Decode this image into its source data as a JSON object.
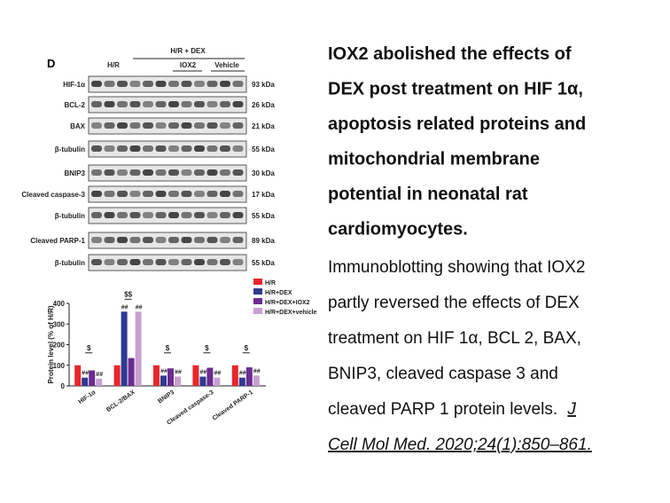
{
  "figure": {
    "panel": "D",
    "group_header": "H/R + DEX",
    "lanes": [
      "H/R",
      "IOX2",
      "Vehicle"
    ],
    "rows": [
      {
        "label": "HIF-1α",
        "size": "93 kDa"
      },
      {
        "label": "BCL-2",
        "size": "26 kDa"
      },
      {
        "label": "BAX",
        "size": "21 kDa"
      },
      {
        "label": "β-tubulin",
        "size": "55 kDa"
      },
      {
        "label": "BNIP3",
        "size": "30 kDa"
      },
      {
        "label": "Cleaved caspase-3",
        "size": "17 kDa"
      },
      {
        "label": "β-tubulin",
        "size": "55 kDa"
      },
      {
        "label": "Cleaved PARP-1",
        "size": "89 kDa"
      },
      {
        "label": "β-tubulin",
        "size": "55 kDa"
      }
    ]
  },
  "chart_data": {
    "type": "bar",
    "ylabel": "Protein level (% of H/R)",
    "categories": [
      "HIF-1α",
      "BCL-2/BAX",
      "BNIP3",
      "Cleaved caspase-3",
      "Cleaved PARP-1"
    ],
    "series": [
      {
        "name": "H/R",
        "color": "#e8262a",
        "values": [
          100,
          100,
          100,
          100,
          100
        ]
      },
      {
        "name": "H/R+DEX",
        "color": "#2e3a91",
        "values": [
          40,
          360,
          50,
          45,
          40
        ],
        "annotations": [
          "##",
          "##",
          "##",
          "##",
          "##"
        ]
      },
      {
        "name": "H/R+DEX+IOX2",
        "color": "#6a2c91",
        "values": [
          75,
          135,
          85,
          88,
          90
        ]
      },
      {
        "name": "H/R+DEX+vehicle",
        "color": "#c79fd0",
        "values": [
          35,
          360,
          45,
          40,
          50
        ],
        "annotations": [
          "##",
          "##",
          "##",
          "##",
          "##"
        ]
      }
    ],
    "brackets": [
      "$",
      "$$",
      "$",
      "$",
      "$"
    ],
    "ylim": [
      0,
      400
    ],
    "yticks": [
      0,
      100,
      200,
      300,
      400
    ]
  },
  "caption": {
    "title_lines": [
      "IOX2 abolished the effects of",
      "DEX post treatment on HIF 1α,",
      "apoptosis related proteins and",
      "mitochondrial membrane",
      "potential in neonatal rat",
      "cardiomyocytes."
    ],
    "body_lines": [
      "Immunoblotting showing that IOX2",
      "partly reversed the effects of DEX",
      "treatment on HIF 1α, BCL 2, BAX,",
      "BNIP3, cleaved caspase 3 and",
      "cleaved PARP 1 protein levels. "
    ],
    "citation": [
      "J",
      "Cell Mol Med. 2020;24(1):850–861."
    ]
  }
}
